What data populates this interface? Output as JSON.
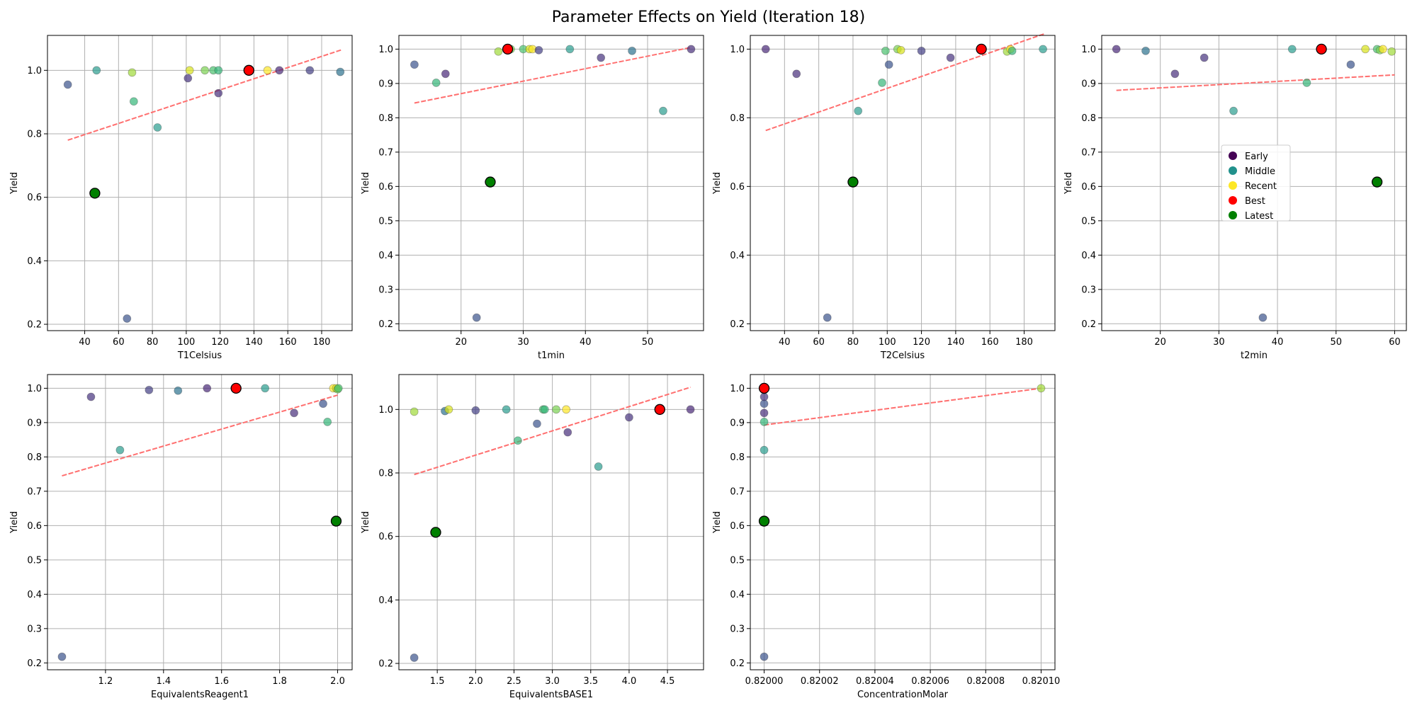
{
  "title": "Parameter Effects on Yield (Iteration 18)",
  "colors": {
    "early": "#440154",
    "middle": "#21918c",
    "recent": "#fde725",
    "best": "#ff0000",
    "latest": "#008000",
    "trend": "#ff6f6f"
  },
  "legend": {
    "placement": "center-left of fourth panel",
    "entries": [
      {
        "label": "Early",
        "color": "#440154"
      },
      {
        "label": "Middle",
        "color": "#21918c"
      },
      {
        "label": "Recent",
        "color": "#fde725"
      },
      {
        "label": "Best",
        "color": "#ff0000"
      },
      {
        "label": "Latest",
        "color": "#008000"
      }
    ]
  },
  "chart_data": [
    {
      "type": "scatter",
      "xlabel": "T1Celsius",
      "ylabel": "Yield",
      "xlim": [
        18,
        198
      ],
      "ylim": [
        0.18,
        1.11
      ],
      "xticks": [
        {
          "v": 40,
          "l": "40"
        },
        {
          "v": 60,
          "l": "60"
        },
        {
          "v": 80,
          "l": "80"
        },
        {
          "v": 100,
          "l": "100"
        },
        {
          "v": 120,
          "l": "120"
        },
        {
          "v": 140,
          "l": "140"
        },
        {
          "v": 160,
          "l": "160"
        },
        {
          "v": 180,
          "l": "180"
        }
      ],
      "yticks": [
        {
          "v": 0.2,
          "l": "0.2"
        },
        {
          "v": 0.4,
          "l": "0.4"
        },
        {
          "v": 0.6,
          "l": "0.6"
        },
        {
          "v": 0.8,
          "l": "0.8"
        },
        {
          "v": 1.0,
          "l": "1.0"
        }
      ],
      "trend": [
        [
          30,
          0.78
        ],
        [
          192,
          1.065
        ]
      ],
      "points": [
        {
          "x": 30,
          "y": 0.955,
          "c": "#3b528b"
        },
        {
          "x": 47,
          "y": 1.0,
          "c": "#2a9d8f"
        },
        {
          "x": 65,
          "y": 0.218,
          "c": "#3b528b"
        },
        {
          "x": 68,
          "y": 0.993,
          "c": "#a0da39"
        },
        {
          "x": 69,
          "y": 0.902,
          "c": "#35b779"
        },
        {
          "x": 83,
          "y": 0.82,
          "c": "#2a9d8f"
        },
        {
          "x": 101,
          "y": 0.975,
          "c": "#46327e"
        },
        {
          "x": 102,
          "y": 1.0,
          "c": "#d8e219"
        },
        {
          "x": 111,
          "y": 1.0,
          "c": "#7ad151"
        },
        {
          "x": 116,
          "y": 1.0,
          "c": "#4ac16d"
        },
        {
          "x": 119,
          "y": 1.0,
          "c": "#35b779"
        },
        {
          "x": 119,
          "y": 0.928,
          "c": "#472d7b"
        },
        {
          "x": 148,
          "y": 1.0,
          "c": "#fde725"
        },
        {
          "x": 155,
          "y": 1.0,
          "c": "#482878"
        },
        {
          "x": 173,
          "y": 1.0,
          "c": "#433e85"
        },
        {
          "x": 191,
          "y": 0.995,
          "c": "#2c728e"
        }
      ],
      "best": {
        "x": 137,
        "y": 1.0
      },
      "latest": {
        "x": 46,
        "y": 0.613
      }
    },
    {
      "type": "scatter",
      "xlabel": "t1min",
      "ylabel": "Yield",
      "xlim": [
        10,
        59
      ],
      "ylim": [
        0.18,
        1.04
      ],
      "xticks": [
        {
          "v": 20,
          "l": "20"
        },
        {
          "v": 30,
          "l": "30"
        },
        {
          "v": 40,
          "l": "40"
        },
        {
          "v": 50,
          "l": "50"
        }
      ],
      "yticks": [
        {
          "v": 0.2,
          "l": "0.2"
        },
        {
          "v": 0.3,
          "l": "0.3"
        },
        {
          "v": 0.4,
          "l": "0.4"
        },
        {
          "v": 0.5,
          "l": "0.5"
        },
        {
          "v": 0.6,
          "l": "0.6"
        },
        {
          "v": 0.7,
          "l": "0.7"
        },
        {
          "v": 0.8,
          "l": "0.8"
        },
        {
          "v": 0.9,
          "l": "0.9"
        },
        {
          "v": 1.0,
          "l": "1.0"
        }
      ],
      "trend": [
        [
          12.5,
          0.843
        ],
        [
          57,
          1.005
        ]
      ],
      "points": [
        {
          "x": 12.5,
          "y": 0.955,
          "c": "#3b528b"
        },
        {
          "x": 16,
          "y": 0.902,
          "c": "#35b779"
        },
        {
          "x": 17.5,
          "y": 0.928,
          "c": "#482878"
        },
        {
          "x": 22.5,
          "y": 0.218,
          "c": "#3b528b"
        },
        {
          "x": 26,
          "y": 0.993,
          "c": "#a0da39"
        },
        {
          "x": 28,
          "y": 1.0,
          "c": "#7ad151"
        },
        {
          "x": 30,
          "y": 1.0,
          "c": "#4ac16d"
        },
        {
          "x": 31,
          "y": 1.0,
          "c": "#d8e219"
        },
        {
          "x": 31.5,
          "y": 1.0,
          "c": "#fde725"
        },
        {
          "x": 32.5,
          "y": 0.997,
          "c": "#433e85"
        },
        {
          "x": 37.5,
          "y": 1.0,
          "c": "#2a9d8f"
        },
        {
          "x": 42.5,
          "y": 0.975,
          "c": "#46327e"
        },
        {
          "x": 47.5,
          "y": 0.995,
          "c": "#2c728e"
        },
        {
          "x": 52.5,
          "y": 0.82,
          "c": "#2a9d8f"
        },
        {
          "x": 57,
          "y": 1.0,
          "c": "#472d7b"
        }
      ],
      "best": {
        "x": 27.5,
        "y": 1.0
      },
      "latest": {
        "x": 24.7,
        "y": 0.613
      }
    },
    {
      "type": "scatter",
      "xlabel": "T2Celsius",
      "ylabel": "Yield",
      "xlim": [
        20,
        198
      ],
      "ylim": [
        0.18,
        1.04
      ],
      "xticks": [
        {
          "v": 40,
          "l": "40"
        },
        {
          "v": 60,
          "l": "60"
        },
        {
          "v": 80,
          "l": "80"
        },
        {
          "v": 100,
          "l": "100"
        },
        {
          "v": 120,
          "l": "120"
        },
        {
          "v": 140,
          "l": "140"
        },
        {
          "v": 160,
          "l": "160"
        },
        {
          "v": 180,
          "l": "180"
        }
      ],
      "yticks": [
        {
          "v": 0.2,
          "l": "0.2"
        },
        {
          "v": 0.4,
          "l": "0.4"
        },
        {
          "v": 0.6,
          "l": "0.6"
        },
        {
          "v": 0.8,
          "l": "0.8"
        },
        {
          "v": 1.0,
          "l": "1.0"
        }
      ],
      "trend": [
        [
          29,
          0.763
        ],
        [
          192,
          1.045
        ]
      ],
      "points": [
        {
          "x": 29,
          "y": 1.0,
          "c": "#482878"
        },
        {
          "x": 47,
          "y": 0.928,
          "c": "#472d7b"
        },
        {
          "x": 65,
          "y": 0.218,
          "c": "#3b528b"
        },
        {
          "x": 83,
          "y": 0.82,
          "c": "#2a9d8f"
        },
        {
          "x": 97,
          "y": 0.902,
          "c": "#35b779"
        },
        {
          "x": 99,
          "y": 0.995,
          "c": "#4ac16d"
        },
        {
          "x": 101,
          "y": 0.955,
          "c": "#3b528b"
        },
        {
          "x": 106,
          "y": 1.0,
          "c": "#7ad151"
        },
        {
          "x": 108,
          "y": 0.997,
          "c": "#d8e219"
        },
        {
          "x": 120,
          "y": 0.995,
          "c": "#433e85"
        },
        {
          "x": 137,
          "y": 0.975,
          "c": "#46327e"
        },
        {
          "x": 170,
          "y": 0.993,
          "c": "#a0da39"
        },
        {
          "x": 172,
          "y": 1.0,
          "c": "#fde725"
        },
        {
          "x": 173,
          "y": 0.995,
          "c": "#35b779"
        },
        {
          "x": 191,
          "y": 1.0,
          "c": "#2a9d8f"
        }
      ],
      "best": {
        "x": 155,
        "y": 1.0
      },
      "latest": {
        "x": 80,
        "y": 0.613
      }
    },
    {
      "type": "scatter",
      "xlabel": "t2min",
      "ylabel": "Yield",
      "xlim": [
        10,
        62
      ],
      "ylim": [
        0.18,
        1.04
      ],
      "xticks": [
        {
          "v": 20,
          "l": "20"
        },
        {
          "v": 30,
          "l": "30"
        },
        {
          "v": 40,
          "l": "40"
        },
        {
          "v": 50,
          "l": "50"
        },
        {
          "v": 60,
          "l": "60"
        }
      ],
      "yticks": [
        {
          "v": 0.2,
          "l": "0.2"
        },
        {
          "v": 0.3,
          "l": "0.3"
        },
        {
          "v": 0.4,
          "l": "0.4"
        },
        {
          "v": 0.5,
          "l": "0.5"
        },
        {
          "v": 0.6,
          "l": "0.6"
        },
        {
          "v": 0.7,
          "l": "0.7"
        },
        {
          "v": 0.8,
          "l": "0.8"
        },
        {
          "v": 0.9,
          "l": "0.9"
        },
        {
          "v": 1.0,
          "l": "1.0"
        }
      ],
      "trend": [
        [
          12.5,
          0.88
        ],
        [
          60,
          0.925
        ]
      ],
      "points": [
        {
          "x": 12.5,
          "y": 1.0,
          "c": "#482878"
        },
        {
          "x": 17.5,
          "y": 0.995,
          "c": "#2c728e"
        },
        {
          "x": 22.5,
          "y": 0.928,
          "c": "#472d7b"
        },
        {
          "x": 27.5,
          "y": 0.975,
          "c": "#46327e"
        },
        {
          "x": 32.5,
          "y": 0.82,
          "c": "#2a9d8f"
        },
        {
          "x": 37.5,
          "y": 0.218,
          "c": "#3b528b"
        },
        {
          "x": 42.5,
          "y": 1.0,
          "c": "#2a9d8f"
        },
        {
          "x": 45,
          "y": 0.902,
          "c": "#35b779"
        },
        {
          "x": 52.5,
          "y": 0.955,
          "c": "#3b528b"
        },
        {
          "x": 55,
          "y": 1.0,
          "c": "#d8e219"
        },
        {
          "x": 57,
          "y": 1.0,
          "c": "#4ac16d"
        },
        {
          "x": 57.5,
          "y": 0.997,
          "c": "#7ad151"
        },
        {
          "x": 58,
          "y": 1.0,
          "c": "#fde725"
        },
        {
          "x": 59.5,
          "y": 0.993,
          "c": "#a0da39"
        }
      ],
      "best": {
        "x": 47.5,
        "y": 1.0
      },
      "latest": {
        "x": 57,
        "y": 0.613
      }
    },
    {
      "type": "scatter",
      "xlabel": "EquivalentsReagent1",
      "ylabel": "Yield",
      "xlim": [
        1.0,
        2.05
      ],
      "ylim": [
        0.18,
        1.04
      ],
      "xticks": [
        {
          "v": 1.2,
          "l": "1.2"
        },
        {
          "v": 1.4,
          "l": "1.4"
        },
        {
          "v": 1.6,
          "l": "1.6"
        },
        {
          "v": 1.8,
          "l": "1.8"
        },
        {
          "v": 2.0,
          "l": "2.0"
        }
      ],
      "yticks": [
        {
          "v": 0.2,
          "l": "0.2"
        },
        {
          "v": 0.3,
          "l": "0.3"
        },
        {
          "v": 0.4,
          "l": "0.4"
        },
        {
          "v": 0.5,
          "l": "0.5"
        },
        {
          "v": 0.6,
          "l": "0.6"
        },
        {
          "v": 0.7,
          "l": "0.7"
        },
        {
          "v": 0.8,
          "l": "0.8"
        },
        {
          "v": 0.9,
          "l": "0.9"
        },
        {
          "v": 1.0,
          "l": "1.0"
        }
      ],
      "trend": [
        [
          1.05,
          0.745
        ],
        [
          2.0,
          0.98
        ]
      ],
      "points": [
        {
          "x": 1.05,
          "y": 0.218,
          "c": "#3b528b"
        },
        {
          "x": 1.15,
          "y": 0.975,
          "c": "#46327e"
        },
        {
          "x": 1.25,
          "y": 0.82,
          "c": "#2a9d8f"
        },
        {
          "x": 1.35,
          "y": 0.995,
          "c": "#433e85"
        },
        {
          "x": 1.45,
          "y": 0.993,
          "c": "#2c728e"
        },
        {
          "x": 1.55,
          "y": 1.0,
          "c": "#482878"
        },
        {
          "x": 1.75,
          "y": 1.0,
          "c": "#2a9d8f"
        },
        {
          "x": 1.85,
          "y": 0.928,
          "c": "#472d7b"
        },
        {
          "x": 1.95,
          "y": 0.955,
          "c": "#3b528b"
        },
        {
          "x": 1.965,
          "y": 0.902,
          "c": "#35b779"
        },
        {
          "x": 1.985,
          "y": 1.0,
          "c": "#fde725"
        },
        {
          "x": 1.995,
          "y": 1.0,
          "c": "#d8e219"
        },
        {
          "x": 2.0,
          "y": 0.997,
          "c": "#7ad151"
        },
        {
          "x": 2.003,
          "y": 1.0,
          "c": "#4ac16d"
        }
      ],
      "best": {
        "x": 1.65,
        "y": 1.0
      },
      "latest": {
        "x": 1.995,
        "y": 0.613
      }
    },
    {
      "type": "scatter",
      "xlabel": "EquivalentsBASE1",
      "ylabel": "Yield",
      "xlim": [
        1.0,
        4.97
      ],
      "ylim": [
        0.18,
        1.11
      ],
      "xticks": [
        {
          "v": 1.5,
          "l": "1.5"
        },
        {
          "v": 2.0,
          "l": "2.0"
        },
        {
          "v": 2.5,
          "l": "2.5"
        },
        {
          "v": 3.0,
          "l": "3.0"
        },
        {
          "v": 3.5,
          "l": "3.5"
        },
        {
          "v": 4.0,
          "l": "4.0"
        },
        {
          "v": 4.5,
          "l": "4.5"
        }
      ],
      "yticks": [
        {
          "v": 0.2,
          "l": "0.2"
        },
        {
          "v": 0.4,
          "l": "0.4"
        },
        {
          "v": 0.6,
          "l": "0.6"
        },
        {
          "v": 0.8,
          "l": "0.8"
        },
        {
          "v": 1.0,
          "l": "1.0"
        }
      ],
      "trend": [
        [
          1.2,
          0.795
        ],
        [
          4.8,
          1.07
        ]
      ],
      "points": [
        {
          "x": 1.2,
          "y": 0.218,
          "c": "#3b528b"
        },
        {
          "x": 1.2,
          "y": 0.993,
          "c": "#a0da39"
        },
        {
          "x": 1.6,
          "y": 0.995,
          "c": "#2c728e"
        },
        {
          "x": 1.65,
          "y": 1.0,
          "c": "#d8e219"
        },
        {
          "x": 2.0,
          "y": 0.997,
          "c": "#433e85"
        },
        {
          "x": 2.4,
          "y": 1.0,
          "c": "#2a9d8f"
        },
        {
          "x": 2.55,
          "y": 0.902,
          "c": "#35b779"
        },
        {
          "x": 2.8,
          "y": 0.955,
          "c": "#3b528b"
        },
        {
          "x": 2.88,
          "y": 1.0,
          "c": "#4ac16d"
        },
        {
          "x": 2.9,
          "y": 1.0,
          "c": "#35b779"
        },
        {
          "x": 3.05,
          "y": 1.0,
          "c": "#7ad151"
        },
        {
          "x": 3.18,
          "y": 1.0,
          "c": "#fde725"
        },
        {
          "x": 3.2,
          "y": 0.928,
          "c": "#472d7b"
        },
        {
          "x": 3.6,
          "y": 0.82,
          "c": "#2a9d8f"
        },
        {
          "x": 4.0,
          "y": 0.975,
          "c": "#46327e"
        },
        {
          "x": 4.8,
          "y": 1.0,
          "c": "#482878"
        }
      ],
      "best": {
        "x": 4.4,
        "y": 1.0
      },
      "latest": {
        "x": 1.48,
        "y": 0.613
      }
    },
    {
      "type": "scatter",
      "xlabel": "ConcentrationMolar",
      "ylabel": "Yield",
      "xlim": [
        0.819995,
        0.820105
      ],
      "ylim": [
        0.18,
        1.04
      ],
      "xticks": [
        {
          "v": 0.82,
          "l": "0.82000"
        },
        {
          "v": 0.82002,
          "l": "0.82002"
        },
        {
          "v": 0.82004,
          "l": "0.82004"
        },
        {
          "v": 0.82006,
          "l": "0.82006"
        },
        {
          "v": 0.82008,
          "l": "0.82008"
        },
        {
          "v": 0.8201,
          "l": "0.82010"
        }
      ],
      "yticks": [
        {
          "v": 0.2,
          "l": "0.2"
        },
        {
          "v": 0.3,
          "l": "0.3"
        },
        {
          "v": 0.4,
          "l": "0.4"
        },
        {
          "v": 0.5,
          "l": "0.5"
        },
        {
          "v": 0.6,
          "l": "0.6"
        },
        {
          "v": 0.7,
          "l": "0.7"
        },
        {
          "v": 0.8,
          "l": "0.8"
        },
        {
          "v": 0.9,
          "l": "0.9"
        },
        {
          "v": 1.0,
          "l": "1.0"
        }
      ],
      "trend": [
        [
          0.82,
          0.893
        ],
        [
          0.8201,
          1.0
        ]
      ],
      "points": [
        {
          "x": 0.82,
          "y": 0.218,
          "c": "#3b528b"
        },
        {
          "x": 0.82,
          "y": 0.82,
          "c": "#2a9d8f"
        },
        {
          "x": 0.82,
          "y": 0.902,
          "c": "#35b779"
        },
        {
          "x": 0.82,
          "y": 0.928,
          "c": "#472d7b"
        },
        {
          "x": 0.82,
          "y": 0.955,
          "c": "#3b528b"
        },
        {
          "x": 0.82,
          "y": 0.975,
          "c": "#46327e"
        },
        {
          "x": 0.82,
          "y": 0.995,
          "c": "#433e85"
        },
        {
          "x": 0.8201,
          "y": 1.0,
          "c": "#a0da39"
        }
      ],
      "best": {
        "x": 0.82,
        "y": 1.0
      },
      "latest": {
        "x": 0.82,
        "y": 0.613
      }
    }
  ]
}
